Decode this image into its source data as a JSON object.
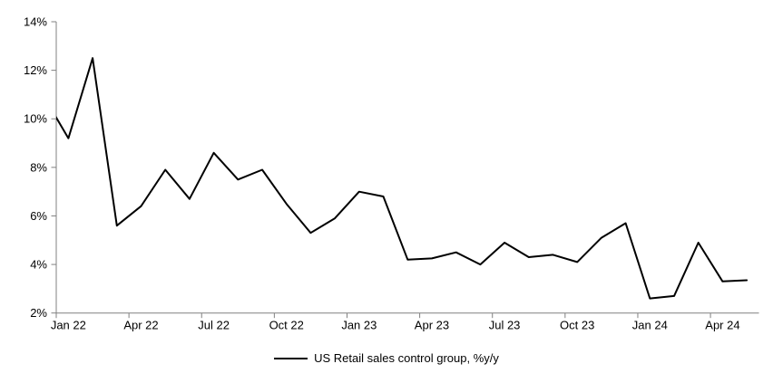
{
  "chart_data": {
    "type": "line",
    "title": "",
    "xlabel": "",
    "ylabel": "",
    "legend_position": "bottom-center",
    "grid": false,
    "background_color": "#ffffff",
    "axis_color": "#808080",
    "label_color": "#000000",
    "ylim": [
      2,
      14
    ],
    "ytick_values": [
      2,
      4,
      6,
      8,
      10,
      12,
      14
    ],
    "ytick_labels": [
      "2%",
      "4%",
      "6%",
      "8%",
      "10%",
      "12%",
      "14%"
    ],
    "x": [
      "Dec 21",
      "Jan 22",
      "Feb 22",
      "Mar 22",
      "Apr 22",
      "May 22",
      "Jun 22",
      "Jul 22",
      "Aug 22",
      "Sep 22",
      "Oct 22",
      "Nov 22",
      "Dec 22",
      "Jan 23",
      "Feb 23",
      "Mar 23",
      "Apr 23",
      "May 23",
      "Jun 23",
      "Jul 23",
      "Aug 23",
      "Sep 23",
      "Oct 23",
      "Nov 23",
      "Dec 23",
      "Jan 24",
      "Feb 24",
      "Mar 24",
      "Apr 24",
      "May 24"
    ],
    "first_point_clipped_outside_plot": true,
    "xtick_labels": [
      "Jan 22",
      "Apr 22",
      "Jul 22",
      "Oct 22",
      "Jan 23",
      "Apr 23",
      "Jul 23",
      "Oct 23",
      "Jan 24",
      "Apr 24"
    ],
    "series": [
      {
        "name": "US Retail sales control group, %y/y",
        "color": "#000000",
        "line_width": 2,
        "values": [
          10.9,
          9.2,
          12.5,
          5.6,
          6.4,
          7.9,
          6.7,
          8.6,
          7.5,
          7.9,
          6.5,
          5.3,
          5.9,
          7.0,
          6.8,
          4.2,
          4.25,
          4.5,
          4.0,
          4.9,
          4.3,
          4.4,
          4.1,
          5.1,
          5.7,
          2.6,
          2.7,
          4.9,
          3.3,
          3.35
        ]
      }
    ]
  }
}
